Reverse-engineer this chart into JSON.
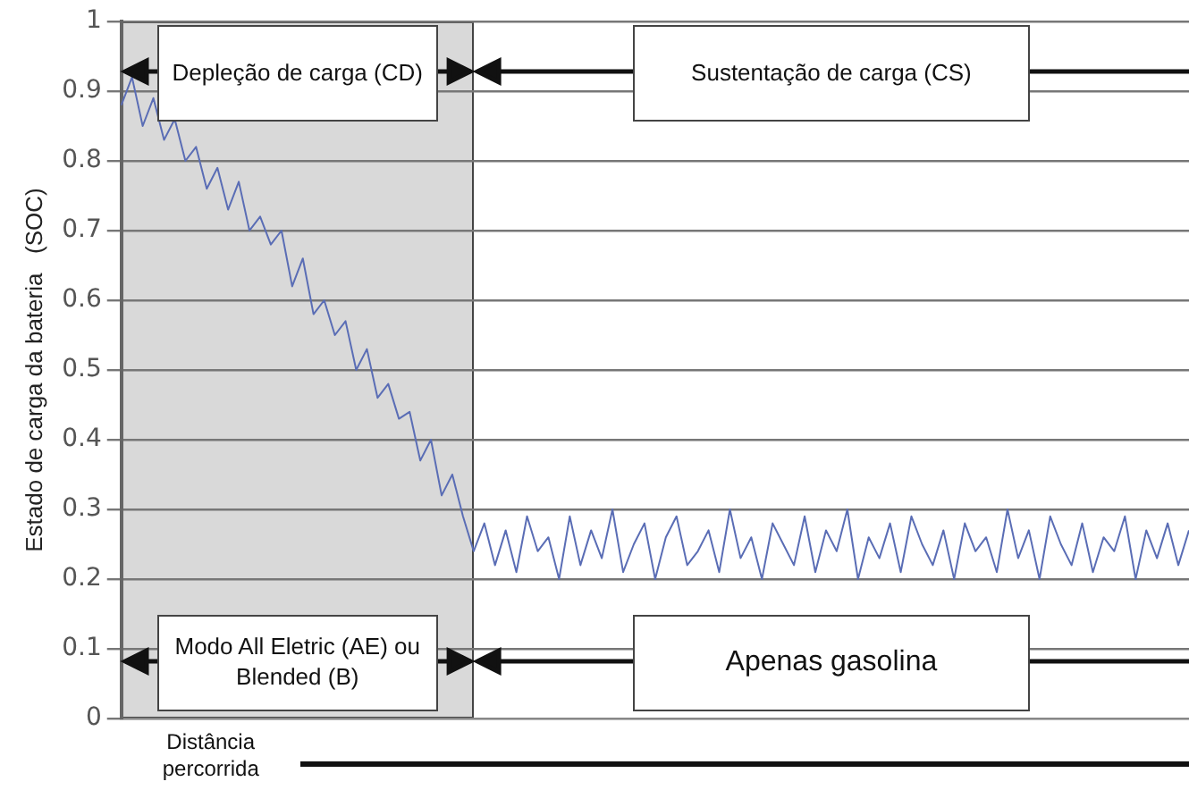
{
  "chart_data": {
    "type": "line",
    "xlabel": "Distância percorrida",
    "ylabel": "Estado de carga da bateria   (SOC)",
    "categories": [
      null,
      null,
      null,
      null,
      null,
      null,
      null,
      null,
      null,
      null,
      null,
      null,
      null,
      null,
      null,
      null,
      null,
      null,
      null,
      null,
      null,
      null,
      null,
      null,
      null,
      null,
      null,
      null,
      null,
      null,
      null,
      null,
      null,
      null,
      null,
      null,
      null,
      null,
      null,
      null,
      null,
      null,
      null,
      null,
      null,
      null,
      null,
      null,
      null,
      null,
      null,
      null,
      null,
      null,
      null,
      null,
      null,
      null,
      null,
      null,
      null,
      null,
      null,
      null,
      null,
      null,
      null,
      null,
      null,
      null,
      null,
      null,
      null,
      null,
      null,
      null,
      null,
      null,
      null,
      null,
      null,
      null,
      null,
      null,
      null,
      null,
      null,
      null,
      null,
      null,
      null,
      null,
      null,
      null,
      null,
      null,
      null,
      null,
      null,
      null,
      null
    ],
    "series": [
      {
        "color": "#5a6db5",
        "values": [
          0.88,
          0.92,
          0.85,
          0.89,
          0.83,
          0.86,
          0.8,
          0.82,
          0.76,
          0.79,
          0.73,
          0.77,
          0.7,
          0.72,
          0.68,
          0.7,
          0.62,
          0.66,
          0.58,
          0.6,
          0.55,
          0.57,
          0.5,
          0.53,
          0.46,
          0.48,
          0.43,
          0.44,
          0.37,
          0.4,
          0.32,
          0.35,
          0.29,
          0.24,
          0.28,
          0.22,
          0.27,
          0.21,
          0.29,
          0.24,
          0.26,
          0.2,
          0.29,
          0.22,
          0.27,
          0.23,
          0.3,
          0.21,
          0.25,
          0.28,
          0.2,
          0.26,
          0.29,
          0.22,
          0.24,
          0.27,
          0.21,
          0.3,
          0.23,
          0.26,
          0.2,
          0.28,
          0.25,
          0.22,
          0.29,
          0.21,
          0.27,
          0.24,
          0.3,
          0.2,
          0.26,
          0.23,
          0.28,
          0.21,
          0.29,
          0.25,
          0.22,
          0.27,
          0.2,
          0.28,
          0.24,
          0.26,
          0.21,
          0.3,
          0.23,
          0.27,
          0.2,
          0.29,
          0.25,
          0.22,
          0.28,
          0.21,
          0.26,
          0.24,
          0.29,
          0.2,
          0.27,
          0.23,
          0.28,
          0.22,
          0.27
        ]
      }
    ],
    "ylim": [
      0,
      1
    ],
    "yticks": [
      0,
      0.1,
      0.2,
      0.3,
      0.4,
      0.5,
      0.6,
      0.7,
      0.8,
      0.9,
      1
    ],
    "tick_labels": "y",
    "grid": "y",
    "marker": "none",
    "line_style": "solid",
    "annotations": [
      "Depleção de carga (CD)",
      "Sustentação de carga (CS)",
      "Modo All Eletric (AE) ou Blended (B)",
      "Apenas gasolina"
    ]
  }
}
